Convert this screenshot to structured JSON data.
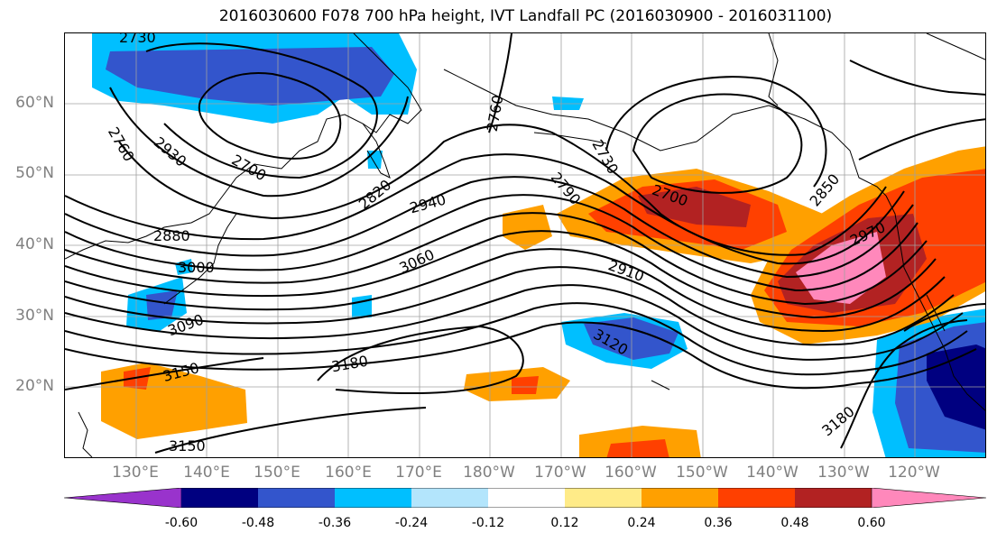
{
  "title": "2016030600 F078 700 hPa height, IVT Landfall PC (2016030900 - 2016031100)",
  "lat_labels": [
    "60°N",
    "50°N",
    "40°N",
    "30°N",
    "20°N"
  ],
  "lon_labels": [
    "130°E",
    "140°E",
    "150°E",
    "160°E",
    "170°E",
    "180°W",
    "170°W",
    "160°W",
    "150°W",
    "140°W",
    "130°W",
    "120°W"
  ],
  "contour_labels": [
    "2730",
    "2760",
    "2930",
    "2700",
    "2760",
    "2820",
    "2940",
    "2880",
    "3000",
    "3060",
    "3090",
    "3150",
    "3180",
    "3150",
    "2730",
    "2790",
    "2700",
    "2850",
    "2970",
    "2910",
    "3120",
    "3180"
  ],
  "colorbar": {
    "ticks": [
      "-0.60",
      "-0.48",
      "-0.36",
      "-0.24",
      "-0.12",
      "0.12",
      "0.24",
      "0.36",
      "0.48",
      "0.60"
    ],
    "colors": [
      "#9933cc",
      "#000080",
      "#3355cc",
      "#00bfff",
      "#b3e5fc",
      "#ffffff",
      "#ffeb88",
      "#ffa000",
      "#ff4000",
      "#b22222",
      "#ff88bb"
    ]
  }
}
